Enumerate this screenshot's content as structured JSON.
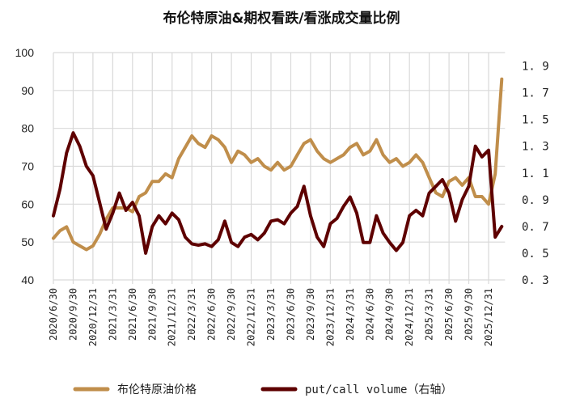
{
  "chart_data": {
    "type": "line",
    "title": "布伦特原油&期权看跌/看涨成交量比例",
    "x_tick_labels": [
      "2020/6/30",
      "2020/9/30",
      "2020/12/31",
      "2021/3/31",
      "2021/6/30",
      "2021/9/30",
      "2021/12/31",
      "2022/3/31",
      "2022/6/30",
      "2022/9/30",
      "2022/12/31",
      "2023/3/31",
      "2023/6/30",
      "2023/9/30",
      "2023/12/31",
      "2024/3/31",
      "2024/6/30",
      "2024/9/30",
      "2024/12/31",
      "2025/3/31",
      "2025/6/30",
      "2025/9/30",
      "2025/12/31"
    ],
    "x_start": "2020-06",
    "x_frequency": "monthly",
    "left_axis": {
      "ylim": [
        40,
        100
      ],
      "ticks": [
        "100",
        "90",
        "80",
        "70",
        "60",
        "50",
        "40"
      ]
    },
    "right_axis": {
      "ylim": [
        0.3,
        2.0
      ],
      "ticks": [
        "1.9",
        "1.7",
        "1.5",
        "1.3",
        "1.1",
        "0.9",
        "0.7",
        "0.5",
        "0.3"
      ]
    },
    "grid": true,
    "legend_placement": "bottom",
    "series": [
      {
        "name": "布伦特原油价格",
        "axis": "left",
        "color": "#C08E4B",
        "values": [
          51,
          53,
          54,
          50,
          49,
          48,
          49,
          52,
          56,
          59,
          59,
          59,
          58,
          62,
          63,
          66,
          66,
          68,
          67,
          72,
          75,
          78,
          76,
          75,
          78,
          77,
          75,
          71,
          74,
          73,
          71,
          72,
          70,
          69,
          71,
          69,
          70,
          73,
          76,
          77,
          74,
          72,
          71,
          72,
          73,
          75,
          76,
          73,
          74,
          77,
          73,
          71,
          72,
          70,
          71,
          73,
          71,
          67,
          63,
          62,
          66,
          67,
          65,
          67,
          62,
          62,
          60,
          68,
          93
        ]
      },
      {
        "name": "put/call volume（右轴）",
        "axis": "right",
        "color": "#5E0000",
        "values": [
          0.78,
          0.98,
          1.25,
          1.4,
          1.3,
          1.15,
          1.08,
          0.88,
          0.68,
          0.8,
          0.95,
          0.82,
          0.88,
          0.78,
          0.5,
          0.7,
          0.78,
          0.72,
          0.8,
          0.75,
          0.62,
          0.57,
          0.56,
          0.57,
          0.55,
          0.6,
          0.74,
          0.58,
          0.55,
          0.62,
          0.64,
          0.6,
          0.65,
          0.74,
          0.75,
          0.72,
          0.8,
          0.85,
          1.0,
          0.78,
          0.62,
          0.55,
          0.72,
          0.76,
          0.85,
          0.92,
          0.8,
          0.58,
          0.58,
          0.78,
          0.65,
          0.58,
          0.52,
          0.58,
          0.78,
          0.82,
          0.78,
          0.95,
          1.0,
          1.05,
          0.95,
          0.74,
          0.9,
          1.0,
          1.3,
          1.22,
          1.27,
          0.62,
          0.7
        ]
      }
    ]
  }
}
